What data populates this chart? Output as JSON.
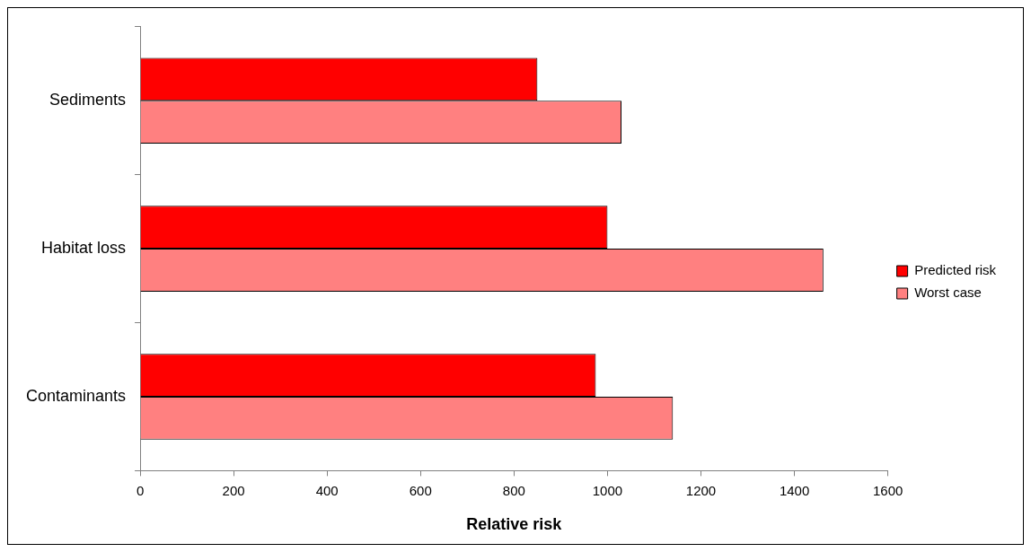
{
  "chart_data": {
    "type": "bar",
    "orientation": "horizontal",
    "xlabel": "Relative risk",
    "categories": [
      "Sediments",
      "Habitat loss",
      "Contaminants"
    ],
    "series": [
      {
        "name": "Predicted risk",
        "color": "#ff0000",
        "values": [
          850,
          1000,
          975
        ]
      },
      {
        "name": "Worst case",
        "color": "#ff8080",
        "values": [
          1030,
          1462,
          1140
        ]
      }
    ],
    "xlim": [
      0,
      1600
    ],
    "xticks": [
      0,
      200,
      400,
      600,
      800,
      1000,
      1200,
      1400,
      1600
    ],
    "grid": false,
    "legend": "right"
  }
}
